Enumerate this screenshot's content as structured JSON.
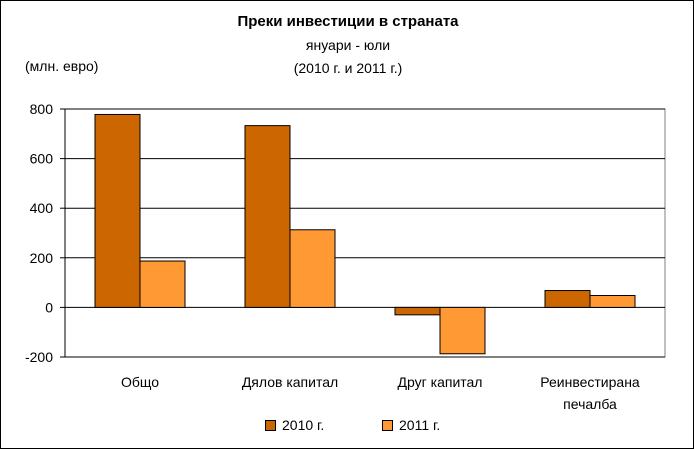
{
  "chart_data": {
    "type": "bar",
    "title": "Преки  инвестиции в страната",
    "subtitle_lines": [
      "януари - юли",
      "(2010 г. и 2011 г.)"
    ],
    "ylabel": "(млн. евро)",
    "xlabel": "",
    "ylim": [
      -200,
      800
    ],
    "yticks": [
      -200,
      0,
      200,
      400,
      600,
      800
    ],
    "grid": true,
    "legend_position": "bottom",
    "categories": [
      [
        "Общо"
      ],
      [
        "Дялов капитал"
      ],
      [
        "Друг капитал"
      ],
      [
        "Реинвестирана",
        "печалба"
      ]
    ],
    "series": [
      {
        "name": "2010 г.",
        "color": "#CC6600",
        "values": [
          778,
          733,
          -30,
          68
        ]
      },
      {
        "name": "2011 г.",
        "color": "#FF9933",
        "values": [
          187,
          313,
          -187,
          48
        ]
      }
    ]
  }
}
